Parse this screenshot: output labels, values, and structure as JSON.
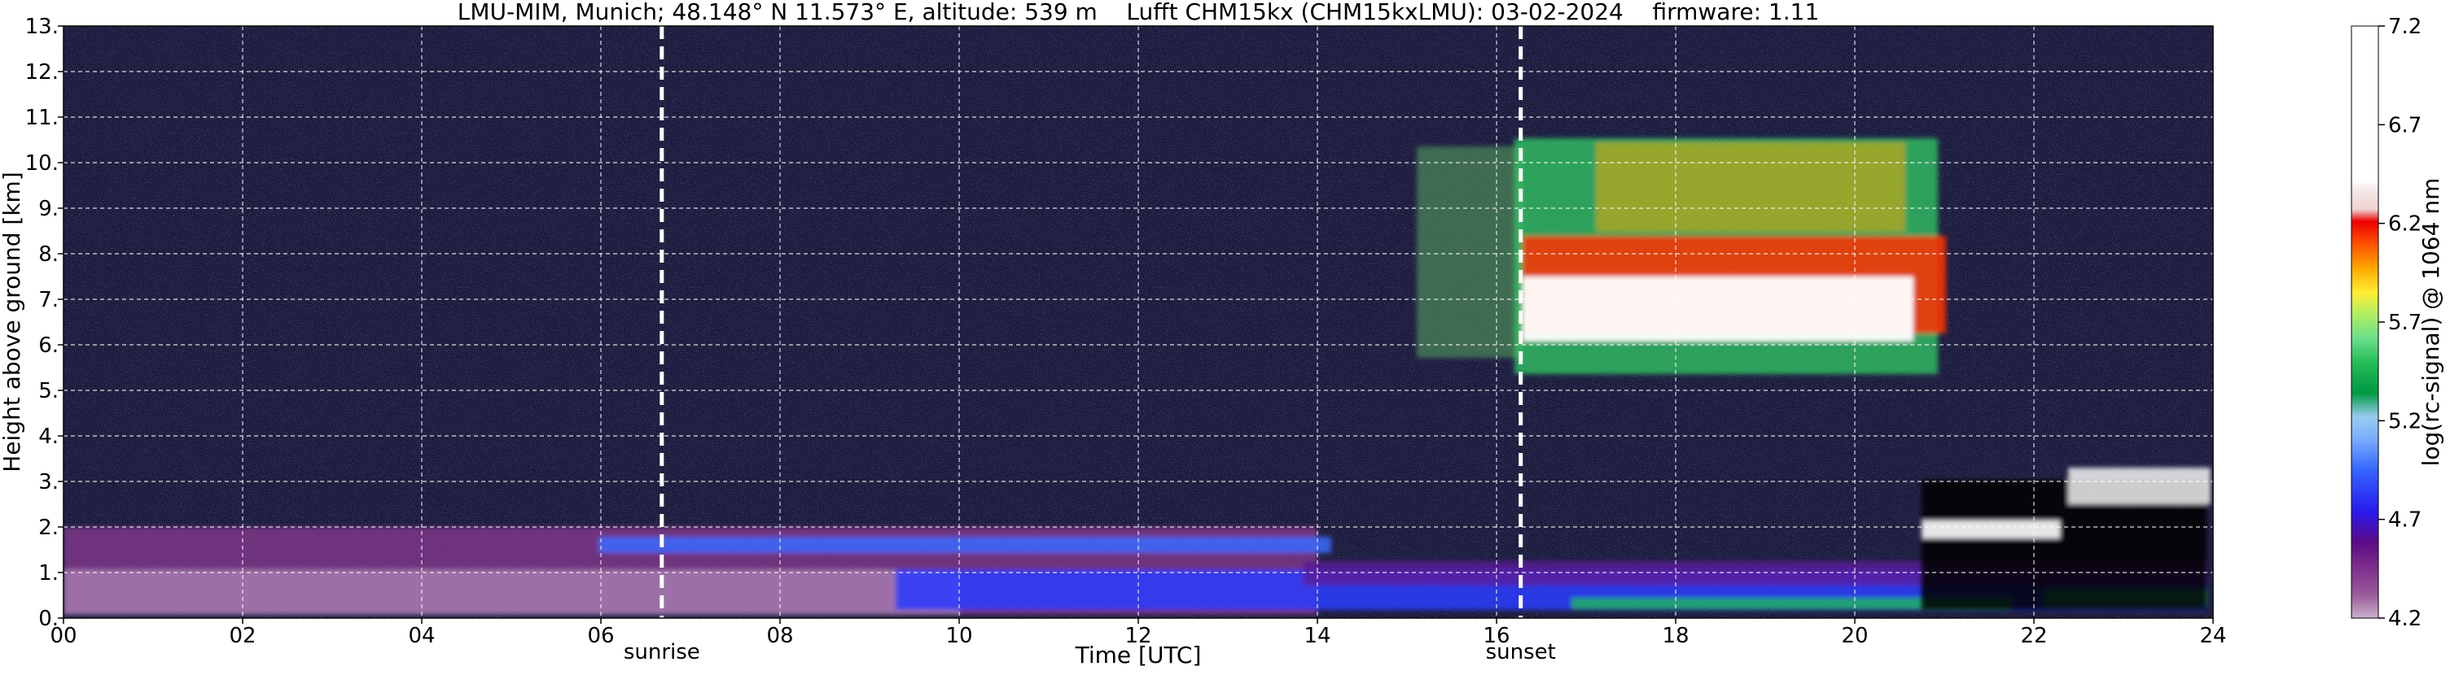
{
  "chart_data": {
    "type": "heatmap",
    "title": "LMU-MIM, Munich; 48.148° N 11.573° E, altitude: 539 m    Lufft CHM15kx (CHM15kxLMU): 03-02-2024    firmware: 1.11",
    "xlabel": "Time [UTC]",
    "ylabel": "Height above ground [km]",
    "xlim": [
      0,
      24
    ],
    "ylim": [
      0,
      13
    ],
    "x_ticks": [
      "00",
      "02",
      "04",
      "06",
      "08",
      "10",
      "12",
      "14",
      "16",
      "18",
      "20",
      "22",
      "24"
    ],
    "y_ticks": [
      "0.",
      "1.",
      "2.",
      "3.",
      "4.",
      "5.",
      "6.",
      "7.",
      "8.",
      "9.",
      "10.",
      "11.",
      "12.",
      "13."
    ],
    "grid": true,
    "colorbar": {
      "label": "log(rc-signal) @ 1064 nm",
      "range": [
        4.2,
        7.2
      ],
      "ticks": [
        "4.2",
        "4.7",
        "5.2",
        "5.7",
        "6.2",
        "6.7",
        "7.2"
      ]
    },
    "markers": [
      {
        "label": "sunrise",
        "x": 6.68
      },
      {
        "label": "sunset",
        "x": 16.27
      }
    ]
  },
  "colors": {
    "background_noise": "#1a1a3a",
    "cloud_core": "#ffffff",
    "cloud_red": "#ff2200",
    "cloud_green": "#33cc55",
    "boundary_layer_purple": "#9a3aa0",
    "boundary_layer_blue": "#2a4fff",
    "marker_line": "#ffffff",
    "grid_line": "#ffffff"
  }
}
